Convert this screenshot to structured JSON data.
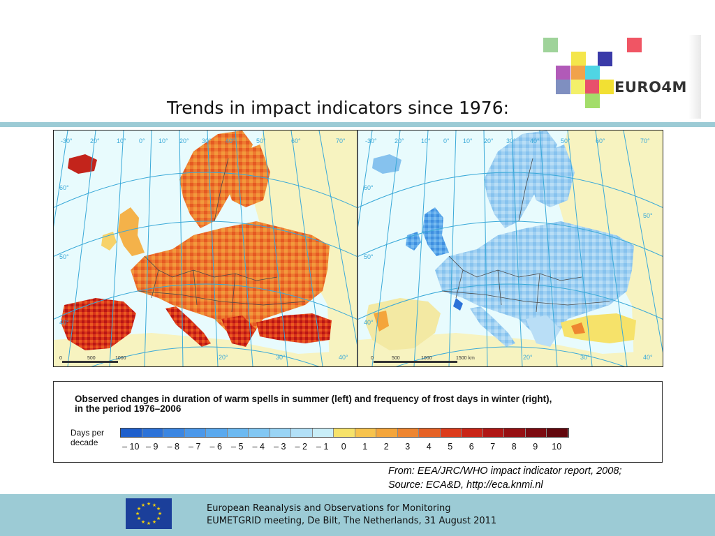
{
  "slide": {
    "title": "Trends in impact indicators since 1976:",
    "source_line1": "From: EEA/JRC/WHO impact indicator report, 2008;",
    "source_line2": "Source: ECA&D, http://eca.knmi.nl"
  },
  "logo": {
    "text": "EURO4M"
  },
  "maps": {
    "left": {
      "lon_labels": [
        "-30°",
        "20°",
        "10°",
        "0°",
        "10°",
        "20°",
        "30°",
        "40°",
        "50°",
        "60°",
        "70°"
      ],
      "lat_labels": [
        "60°",
        "50°",
        "40°",
        "50°"
      ],
      "bottom_labels": [
        "20°",
        "30°",
        "40°"
      ],
      "scale": [
        "0",
        "500",
        "1000"
      ]
    },
    "right": {
      "lon_labels": [
        "-30°",
        "20°",
        "10°",
        "0°",
        "10°",
        "20°",
        "30°",
        "40°",
        "50°",
        "60°",
        "70°"
      ],
      "lat_labels": [
        "60°",
        "50°",
        "40°",
        "50°"
      ],
      "bottom_labels": [
        "20°",
        "30°",
        "40°"
      ],
      "scale": [
        "0",
        "500",
        "1000",
        "1500 km"
      ]
    }
  },
  "legend": {
    "title_line1": "Observed changes in duration of warm spells in summer (left) and frequency of frost days in winter (right),",
    "title_line2": "in the period 1976–2006",
    "unit_line1": "Days per",
    "unit_line2": "decade",
    "ticks": [
      "– 10",
      "– 9",
      "– 8",
      "– 7",
      "– 6",
      "– 5",
      "– 4",
      "– 3",
      "– 2",
      "– 1",
      "0",
      "1",
      "2",
      "3",
      "4",
      "5",
      "6",
      "7",
      "8",
      "9",
      "10"
    ],
    "colors": [
      "#1e5fcc",
      "#2c72d8",
      "#3b86e2",
      "#4b98ea",
      "#5aa9ee",
      "#6cb9f1",
      "#82c7f3",
      "#99d4f5",
      "#b2e0f7",
      "#c9eef8",
      "#f6e26a",
      "#f7c34d",
      "#f4a53b",
      "#ee8530",
      "#e56125",
      "#dc3b1b",
      "#c92416",
      "#b01614",
      "#960f12",
      "#7c0a10",
      "#62070d"
    ]
  },
  "footer": {
    "line1": "European Reanalysis and Observations for Monitoring",
    "line2": "EUMETGRID meeting, De Bilt, The Netherlands, 31 August 2011"
  },
  "colors": {
    "accent_band": "#9ccbd5",
    "ocean": "#e8fbfd",
    "no_data_land": "#f7f3c0",
    "warm_land": "#ee7f32",
    "frost_land": "#9fcff1"
  }
}
